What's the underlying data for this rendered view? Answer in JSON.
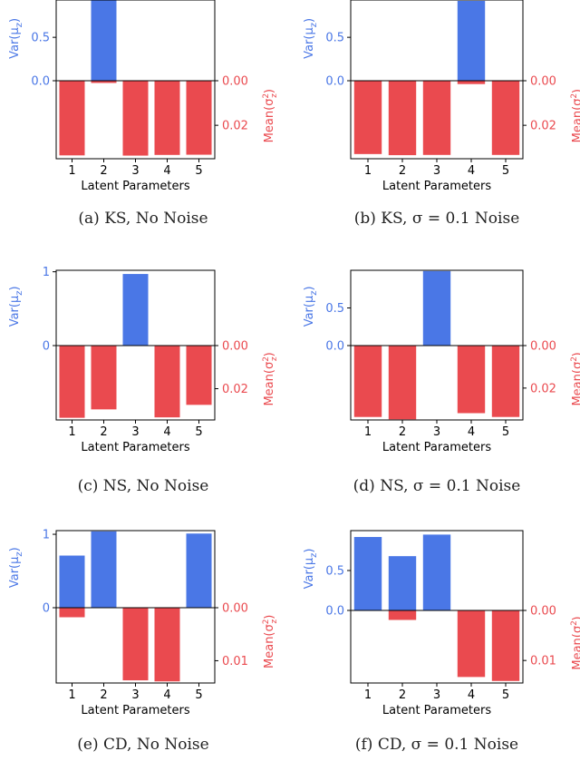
{
  "colors": {
    "var": "#4a77e6",
    "mean": "#ea4a4f",
    "axis": "#000000",
    "caption": "#222222"
  },
  "labels": {
    "var_axis": "Var(μz)",
    "mean_axis": "Mean(σz²)",
    "x_axis": "Latent Parameters"
  },
  "chart_data": [
    {
      "type": "bar",
      "caption": "(a) KS, No Noise",
      "categories": [
        "1",
        "2",
        "3",
        "4",
        "5"
      ],
      "var": {
        "values": [
          0,
          0.93,
          0,
          0,
          0
        ],
        "ylim": [
          0,
          0.93
        ],
        "ticks": [
          "0.0",
          "0.5"
        ],
        "tick_values": [
          0,
          0.5
        ]
      },
      "mean": {
        "values": [
          0.0335,
          0.001,
          0.0336,
          0.0333,
          0.0332
        ],
        "ylim": [
          0,
          0.035
        ],
        "ticks": [
          "0.00",
          "0.02"
        ],
        "tick_values": [
          0,
          0.02
        ]
      }
    },
    {
      "type": "bar",
      "caption": "(b) KS, σ = 0.1 Noise",
      "categories": [
        "1",
        "2",
        "3",
        "4",
        "5"
      ],
      "var": {
        "values": [
          0,
          0,
          0,
          0.92,
          0
        ],
        "ylim": [
          0,
          0.93
        ],
        "ticks": [
          "0.0",
          "0.5"
        ],
        "tick_values": [
          0,
          0.5
        ]
      },
      "mean": {
        "values": [
          0.0329,
          0.0334,
          0.0333,
          0.0015,
          0.0333
        ],
        "ylim": [
          0,
          0.035
        ],
        "ticks": [
          "0.00",
          "0.02"
        ],
        "tick_values": [
          0,
          0.02
        ]
      }
    },
    {
      "type": "bar",
      "caption": "(c) NS, No Noise",
      "categories": [
        "1",
        "2",
        "3",
        "4",
        "5"
      ],
      "var": {
        "values": [
          0,
          0,
          0.97,
          0,
          0
        ],
        "ylim": [
          0,
          1.02
        ],
        "ticks": [
          "0",
          "1"
        ],
        "tick_values": [
          0,
          1
        ]
      },
      "mean": {
        "values": [
          0.0335,
          0.0296,
          0,
          0.0333,
          0.0275
        ],
        "ylim": [
          0,
          0.0345
        ],
        "ticks": [
          "0.00",
          "0.02"
        ],
        "tick_values": [
          0,
          0.02
        ]
      }
    },
    {
      "type": "bar",
      "caption": "(d) NS, σ = 0.1 Noise",
      "categories": [
        "1",
        "2",
        "3",
        "4",
        "5"
      ],
      "var": {
        "values": [
          0,
          0,
          0.99,
          0,
          0
        ],
        "ylim": [
          0,
          1.0
        ],
        "ticks": [
          "0.0",
          "0.5"
        ],
        "tick_values": [
          0,
          0.5
        ]
      },
      "mean": {
        "values": [
          0.0336,
          0.0347,
          0,
          0.0318,
          0.0336
        ],
        "ylim": [
          0,
          0.035
        ],
        "ticks": [
          "0.00",
          "0.02"
        ],
        "tick_values": [
          0,
          0.02
        ]
      }
    },
    {
      "type": "bar",
      "caption": "(e) CD, No Noise",
      "categories": [
        "1",
        "2",
        "3",
        "4",
        "5"
      ],
      "var": {
        "values": [
          0.71,
          1.04,
          0,
          0,
          1.01
        ],
        "ylim": [
          0,
          1.05
        ],
        "ticks": [
          "0",
          "1"
        ],
        "tick_values": [
          0,
          1
        ]
      },
      "mean": {
        "values": [
          0.0018,
          0,
          0.0137,
          0.0139,
          0
        ],
        "ylim": [
          0,
          0.0142
        ],
        "ticks": [
          "0.00",
          "0.01"
        ],
        "tick_values": [
          0,
          0.01
        ]
      }
    },
    {
      "type": "bar",
      "caption": "(f) CD, σ = 0.1 Noise",
      "categories": [
        "1",
        "2",
        "3",
        "4",
        "5"
      ],
      "var": {
        "values": [
          0.92,
          0.68,
          0.95,
          0,
          0
        ],
        "ylim": [
          0,
          1.0
        ],
        "ticks": [
          "0.0",
          "0.5"
        ],
        "tick_values": [
          0,
          0.5
        ]
      },
      "mean": {
        "values": [
          0,
          0.0019,
          0,
          0.0133,
          0.0141
        ],
        "ylim": [
          0,
          0.0145
        ],
        "ticks": [
          "0.00",
          "0.01"
        ],
        "tick_values": [
          0,
          0.01
        ]
      }
    }
  ]
}
